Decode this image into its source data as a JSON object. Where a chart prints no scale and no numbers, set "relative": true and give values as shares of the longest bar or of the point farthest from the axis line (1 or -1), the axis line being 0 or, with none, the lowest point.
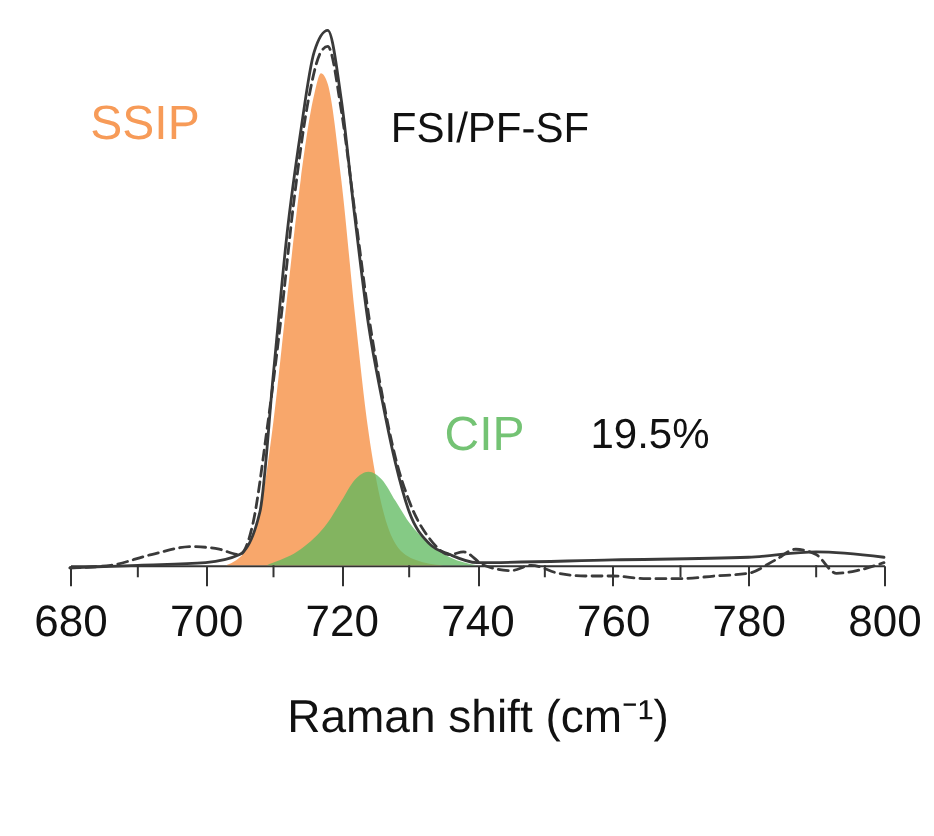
{
  "chart_data": {
    "type": "area",
    "relative": true,
    "xlabel": "Raman shift (cm⁻¹)",
    "xlim": [
      680,
      800
    ],
    "xticks": [
      680,
      {
        "value": 690,
        "label": null
      },
      700,
      {
        "value": 710,
        "label": null
      },
      720,
      {
        "value": 730,
        "label": null
      },
      740,
      {
        "value": 750,
        "label": null
      },
      760,
      {
        "value": 770,
        "label": null
      },
      780,
      {
        "value": 790,
        "label": null
      },
      800
    ],
    "annotations": [
      "FSI/PF-SF",
      "19.5%"
    ],
    "series": [
      {
        "name": "SSIP",
        "color": "#f5893a",
        "x": [
          703,
          706,
          708,
          710,
          712,
          714,
          716,
          717,
          718,
          720,
          722,
          724,
          726,
          728,
          731,
          735
        ],
        "values": [
          0,
          0.03,
          0.1,
          0.27,
          0.5,
          0.72,
          0.88,
          0.92,
          0.9,
          0.72,
          0.47,
          0.25,
          0.11,
          0.04,
          0.01,
          0
        ]
      },
      {
        "name": "CIP",
        "color": "#5cb85c",
        "x": [
          709,
          710,
          714,
          718,
          720,
          722,
          724,
          726,
          728,
          730,
          733,
          736,
          740
        ],
        "values": [
          0,
          0.005,
          0.03,
          0.08,
          0.12,
          0.16,
          0.175,
          0.16,
          0.12,
          0.08,
          0.04,
          0.015,
          0
        ]
      },
      {
        "type": "line",
        "color": "#3a3a3a",
        "line_style": "solid",
        "x": [
          680,
          690,
          700,
          705,
          708,
          710,
          712,
          714,
          716,
          718,
          720,
          722,
          724,
          726,
          728,
          730,
          733,
          736,
          740,
          760,
          780,
          790,
          800
        ],
        "values": [
          -0.005,
          0,
          0.005,
          0.02,
          0.1,
          0.36,
          0.62,
          0.81,
          0.96,
          1.0,
          0.87,
          0.65,
          0.45,
          0.31,
          0.19,
          0.1,
          0.04,
          0.02,
          0.005,
          0.01,
          0.015,
          0.025,
          0.015
        ]
      },
      {
        "type": "line",
        "color": "#3a3a3a",
        "line_style": "dashed",
        "x": [
          680,
          686,
          692,
          698,
          702,
          705,
          707,
          709,
          711,
          713,
          715,
          717,
          718,
          720,
          722,
          724,
          726,
          728,
          730,
          733,
          736,
          738,
          741,
          745,
          748,
          752,
          756,
          760,
          765,
          770,
          775,
          780,
          784,
          787,
          790,
          793,
          796,
          800
        ],
        "values": [
          -0.005,
          0,
          0.02,
          0.035,
          0.03,
          0.02,
          0.08,
          0.25,
          0.45,
          0.68,
          0.86,
          0.96,
          0.97,
          0.85,
          0.66,
          0.47,
          0.32,
          0.2,
          0.12,
          0.05,
          0.02,
          0.025,
          0,
          -0.01,
          0,
          -0.015,
          -0.02,
          -0.02,
          -0.025,
          -0.025,
          -0.02,
          -0.015,
          0.01,
          0.03,
          0.02,
          -0.015,
          -0.01,
          0.005
        ]
      }
    ]
  }
}
